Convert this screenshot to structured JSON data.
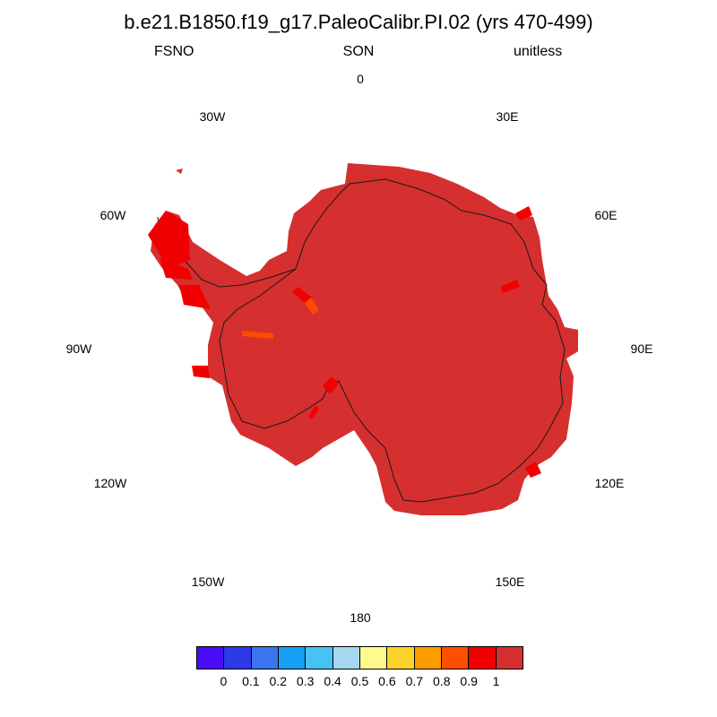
{
  "header": {
    "title": "b.e21.B1850.f19_g17.PaleoCalibr.PI.02 (yrs 470-499)",
    "left": "FSNO",
    "center": "SON",
    "right": "unitless"
  },
  "map": {
    "projection": "south-polar-stereographic",
    "field_color": "#d62f2f",
    "high_anomaly_color": "#f00000",
    "mid_anomaly_color": "#ff4a00",
    "lon_labels": {
      "l0": "0",
      "l30e": "30E",
      "l60e": "60E",
      "l90e": "90E",
      "l120e": "120E",
      "l150e": "150E",
      "l180": "180",
      "l150w": "150W",
      "l120w": "120W",
      "l90w": "90W",
      "l60w": "60W",
      "l30w": "30W"
    }
  },
  "colorbar": {
    "colors": [
      "#4a0cf6",
      "#2c39e6",
      "#3a74ef",
      "#179ff4",
      "#47c2f4",
      "#a5d8ee",
      "#fefa8e",
      "#fdd32b",
      "#fd9c00",
      "#fc4f00",
      "#f00000",
      "#d62f2f"
    ],
    "labels": [
      "0",
      "0.1",
      "0.2",
      "0.3",
      "0.4",
      "0.5",
      "0.6",
      "0.7",
      "0.8",
      "0.9",
      "1"
    ]
  }
}
